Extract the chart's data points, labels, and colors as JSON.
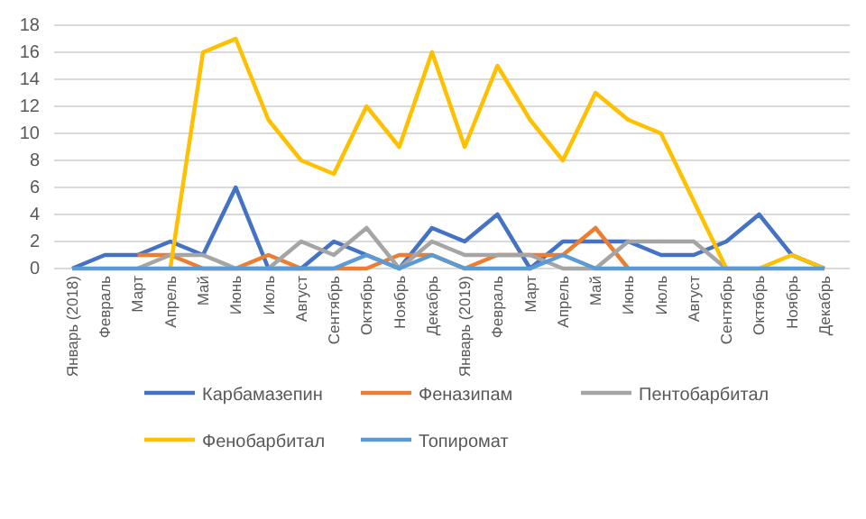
{
  "chart_data": {
    "type": "line",
    "categories": [
      "Январь (2018)",
      "Февраль",
      "Март",
      "Апрель",
      "Май",
      "Июнь",
      "Июль",
      "Август",
      "Сентябрь",
      "Октябрь",
      "Ноябрь",
      "Декабрь",
      "Январь (2019)",
      "Февраль",
      "Март",
      "Апрель",
      "Май",
      "Июнь",
      "Июль",
      "Август",
      "Сентябрь",
      "Октябрь",
      "Ноябрь",
      "Декабрь"
    ],
    "ylim": [
      0,
      18
    ],
    "yticks": [
      0,
      2,
      4,
      6,
      8,
      10,
      12,
      14,
      16,
      18
    ],
    "grid": "y",
    "legend": "bottom",
    "marker": "none",
    "line_style": "solid",
    "series": [
      {
        "name": "Карбамазепин",
        "color": "#4472c4",
        "values": [
          0,
          1,
          1,
          2,
          1,
          6,
          0,
          0,
          2,
          1,
          0,
          3,
          2,
          4,
          0,
          2,
          2,
          2,
          1,
          1,
          2,
          4,
          1,
          0
        ]
      },
      {
        "name": "Феназипам",
        "color": "#ed7d31",
        "values": [
          null,
          null,
          1,
          1,
          0,
          0,
          1,
          0,
          0,
          0,
          1,
          1,
          0,
          1,
          1,
          1,
          3,
          0,
          null,
          null,
          null,
          null,
          null,
          null
        ]
      },
      {
        "name": "Пентобарбитал",
        "color": "#a5a5a5",
        "values": [
          null,
          null,
          0,
          1,
          1,
          0,
          0,
          2,
          1,
          3,
          0,
          2,
          1,
          1,
          1,
          0,
          0,
          2,
          2,
          2,
          0,
          null,
          null,
          null
        ]
      },
      {
        "name": "Фенобарбитал",
        "color": "#ffc000",
        "values": [
          null,
          null,
          null,
          0,
          16,
          17,
          11,
          8,
          7,
          12,
          9,
          16,
          9,
          15,
          11,
          8,
          13,
          11,
          10,
          5,
          0,
          0,
          1,
          0
        ]
      },
      {
        "name": "Топиромат",
        "color": "#5b9bd5",
        "values": [
          0,
          0,
          0,
          0,
          0,
          0,
          0,
          0,
          0,
          1,
          0,
          1,
          0,
          0,
          0,
          1,
          0,
          0,
          0,
          0,
          0,
          0,
          0,
          0
        ]
      }
    ]
  }
}
